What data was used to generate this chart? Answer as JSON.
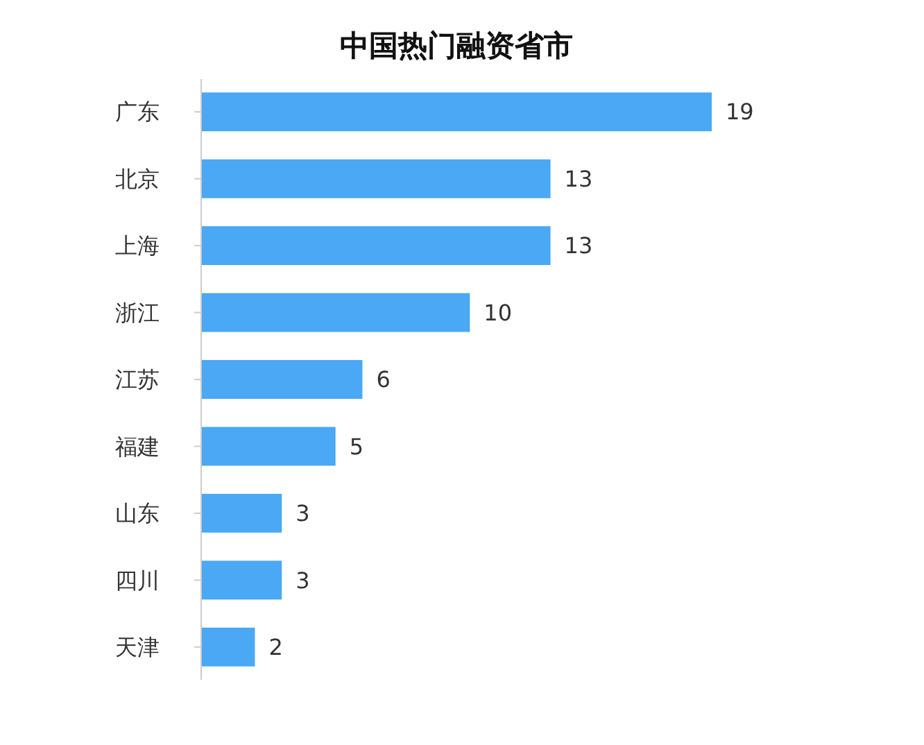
{
  "chart_data": {
    "type": "bar",
    "orientation": "horizontal",
    "title": "中国热门融资省市",
    "categories": [
      "广东",
      "北京",
      "上海",
      "浙江",
      "江苏",
      "福建",
      "山东",
      "四川",
      "天津"
    ],
    "values": [
      19,
      13,
      13,
      10,
      6,
      5,
      3,
      3,
      2
    ],
    "color": "#4aa8f4",
    "data_labels": true
  }
}
